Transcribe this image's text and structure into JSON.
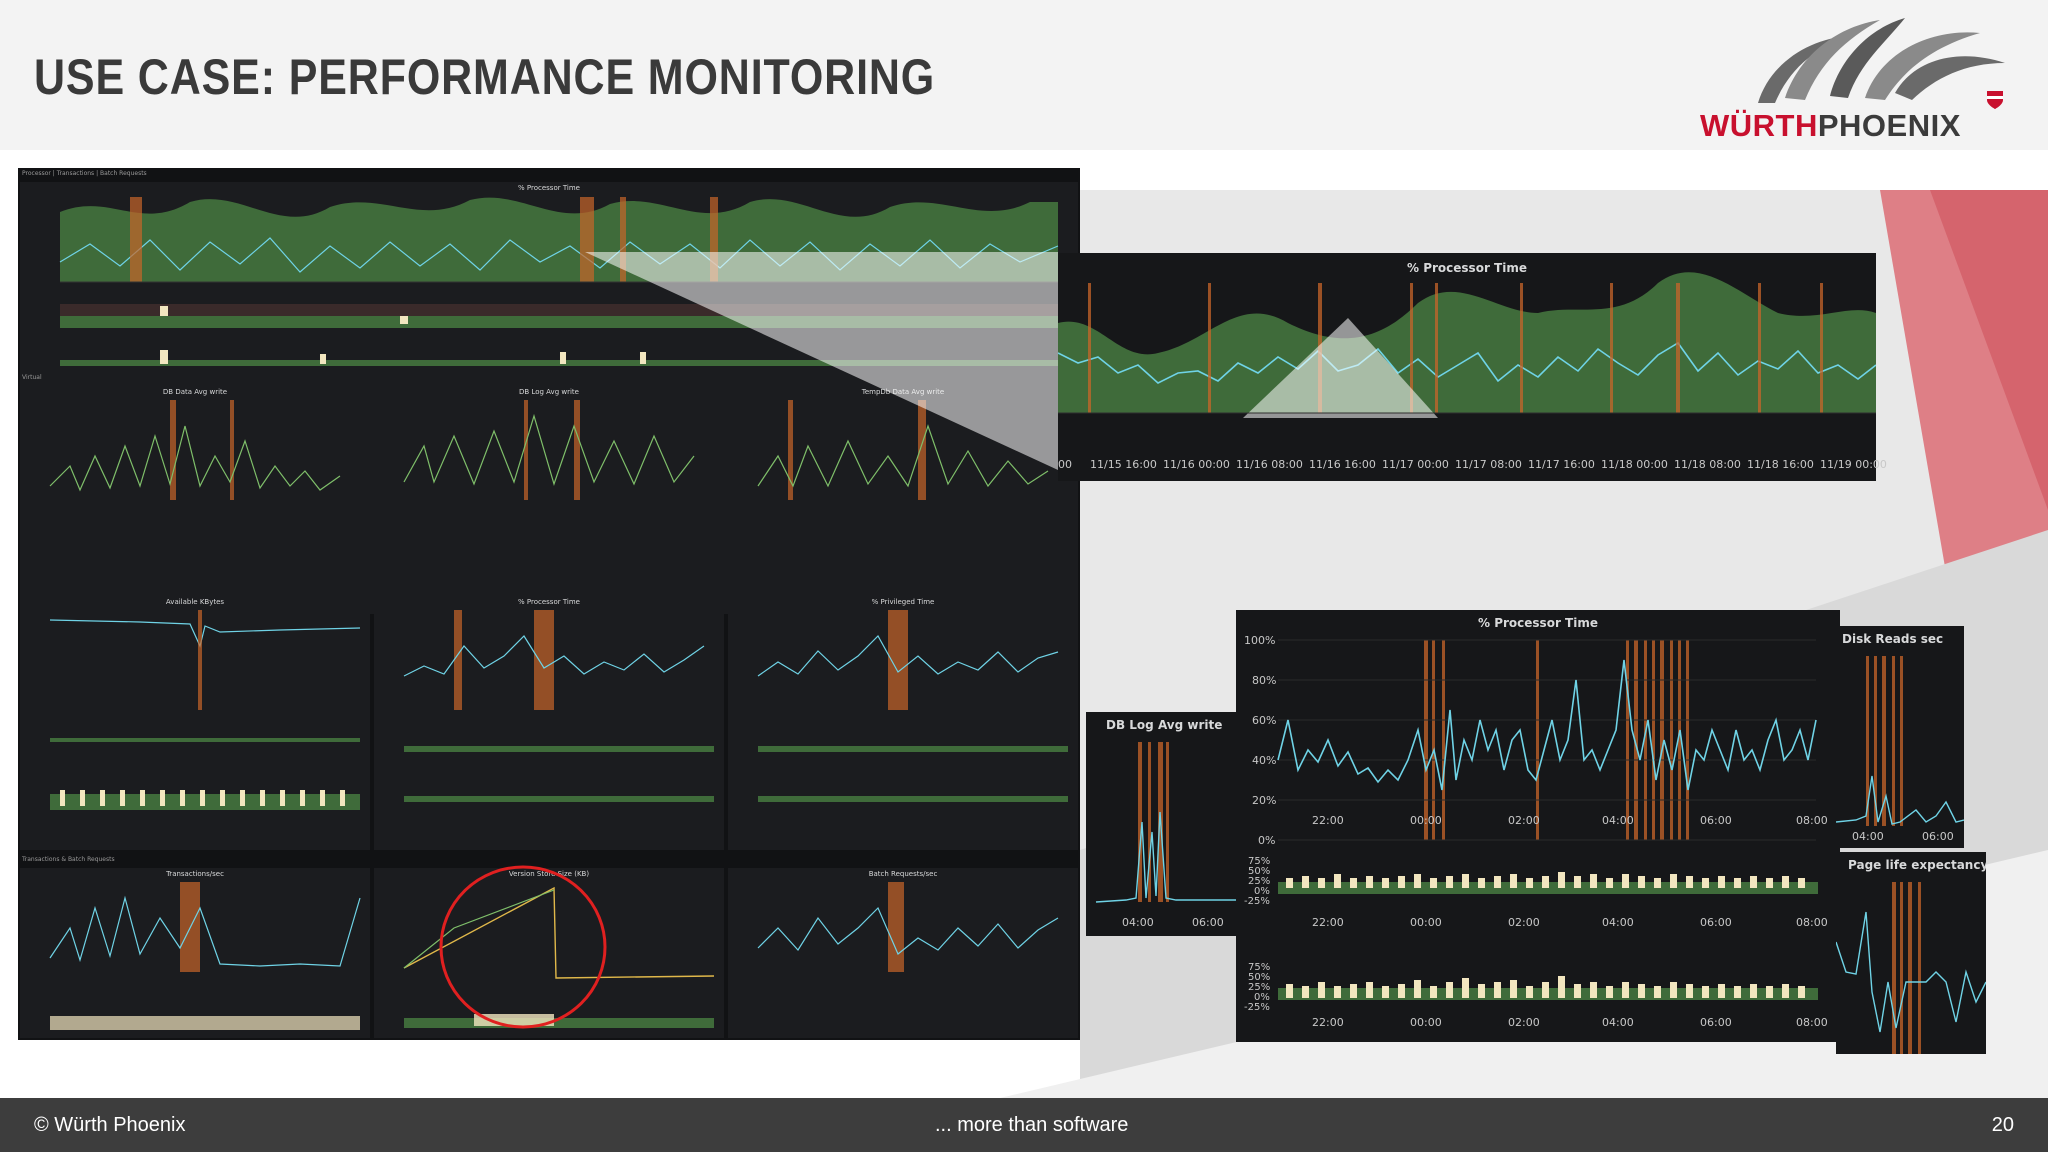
{
  "slide": {
    "title": "USE CASE: PERFORMANCE MONITORING",
    "page_number": "20"
  },
  "logo": {
    "brand_part1": "WÜRTH",
    "brand_part2": "PHOENIX",
    "color_red": "#c8102e",
    "color_dark": "#3b3b3b",
    "icon": "palm-tree-icon"
  },
  "footer": {
    "copyright": "© Würth Phoenix",
    "tagline": "... more than software"
  },
  "colors": {
    "accent_red": "#d9444e",
    "graph_green": "#3f6b3a",
    "graph_line": "#6fd3e6",
    "annotation_orange": "#c8652a",
    "bar_cream": "#f2e6bf",
    "panel_bg": "#1b1c1f",
    "circle_red": "#e02020"
  },
  "dashboard": {
    "sections": {
      "processor": "Processor | Transactions | Batch Requests",
      "virtual": "Virtual",
      "transactions": "Transactions & Batch Requests"
    },
    "panels": {
      "processor_time": "% Processor Time",
      "db_data_avg_write": "DB Data Avg write",
      "db_log_avg_write": "DB Log Avg write",
      "tempdb_data_avg_write": "TempDb Data Avg write",
      "available_kbytes": "Available KBytes",
      "processor_time_2": "% Processor Time",
      "privileged_time": "% Privileged Time",
      "transactions_sec": "Transactions/sec",
      "version_store_size": "Version Store Size (KB)",
      "batch_requests_sec": "Batch Requests/sec"
    }
  },
  "zoom_top": {
    "title": "% Processor Time",
    "x_ticks": [
      "00",
      "11/15 16:00",
      "11/16 00:00",
      "11/16 08:00",
      "11/16 16:00",
      "11/17 00:00",
      "11/17 08:00",
      "11/17 16:00",
      "11/18 00:00",
      "11/18 08:00",
      "11/18 16:00",
      "11/19 00:00"
    ]
  },
  "zoom_bottom": {
    "title": "% Processor Time",
    "y_ticks": [
      "100%",
      "80%",
      "60%",
      "40%",
      "20%",
      "0%"
    ],
    "x_ticks": [
      "22:00",
      "00:00",
      "02:00",
      "04:00",
      "06:00",
      "08:00"
    ],
    "bar_y_ticks": [
      "75%",
      "50%",
      "25%",
      "0%",
      "-25%"
    ]
  },
  "side_panels": {
    "db_log_avg_write": {
      "title": "DB Log Avg write",
      "x_ticks": [
        "04:00",
        "06:00"
      ]
    },
    "disk_reads_sec": {
      "title": "Disk Reads sec",
      "x_ticks": [
        "04:00",
        "06:00"
      ]
    },
    "page_life_expectancy": {
      "title": "Page life expectancy"
    }
  }
}
